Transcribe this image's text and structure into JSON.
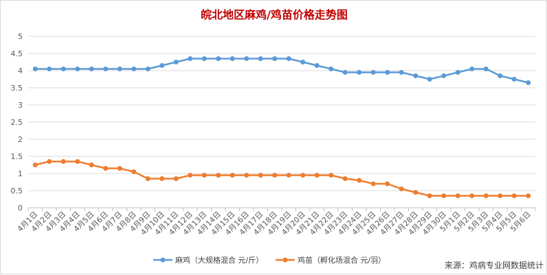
{
  "chart_data": {
    "type": "line",
    "title": "皖北地区麻鸡/鸡苗价格走势图",
    "xlabel": "",
    "ylabel": "",
    "ylim": [
      0,
      5
    ],
    "yticks": [
      "0",
      "0.5",
      "1",
      "1.5",
      "2",
      "2.5",
      "3",
      "3.5",
      "4",
      "4.5",
      "5"
    ],
    "grid": true,
    "legend_position": "bottom",
    "categories": [
      "4月1日",
      "4月2日",
      "4月3日",
      "4月4日",
      "4月5日",
      "4月6日",
      "4月7日",
      "4月8日",
      "4月9日",
      "4月10日",
      "4月11日",
      "4月12日",
      "4月13日",
      "4月14日",
      "4月15日",
      "4月16日",
      "4月17日",
      "4月18日",
      "4月19日",
      "4月20日",
      "4月21日",
      "4月22日",
      "4月23日",
      "4月24日",
      "4月25日",
      "4月26日",
      "4月27日",
      "4月28日",
      "4月29日",
      "4月30日",
      "5月1日",
      "5月2日",
      "5月3日",
      "5月4日",
      "5月5日",
      "5月6日"
    ],
    "series": [
      {
        "name": "麻鸡（大规格混合 元/斤）",
        "color": "#5b9bd5",
        "values": [
          4.05,
          4.05,
          4.05,
          4.05,
          4.05,
          4.05,
          4.05,
          4.05,
          4.05,
          4.15,
          4.25,
          4.35,
          4.35,
          4.35,
          4.35,
          4.35,
          4.35,
          4.35,
          4.35,
          4.25,
          4.15,
          4.05,
          3.95,
          3.95,
          3.95,
          3.95,
          3.95,
          3.85,
          3.75,
          3.85,
          3.95,
          4.05,
          4.05,
          3.85,
          3.75,
          3.65
        ]
      },
      {
        "name": "鸡苗（孵化场混合 元/羽）",
        "color": "#ed7d31",
        "values": [
          1.25,
          1.35,
          1.35,
          1.35,
          1.25,
          1.15,
          1.15,
          1.05,
          0.85,
          0.85,
          0.85,
          0.95,
          0.95,
          0.95,
          0.95,
          0.95,
          0.95,
          0.95,
          0.95,
          0.95,
          0.95,
          0.95,
          0.85,
          0.8,
          0.7,
          0.7,
          0.55,
          0.45,
          0.35,
          0.35,
          0.35,
          0.35,
          0.35,
          0.35,
          0.35,
          0.35
        ]
      }
    ],
    "annotation": "来源：鸡病专业网数据统计"
  }
}
